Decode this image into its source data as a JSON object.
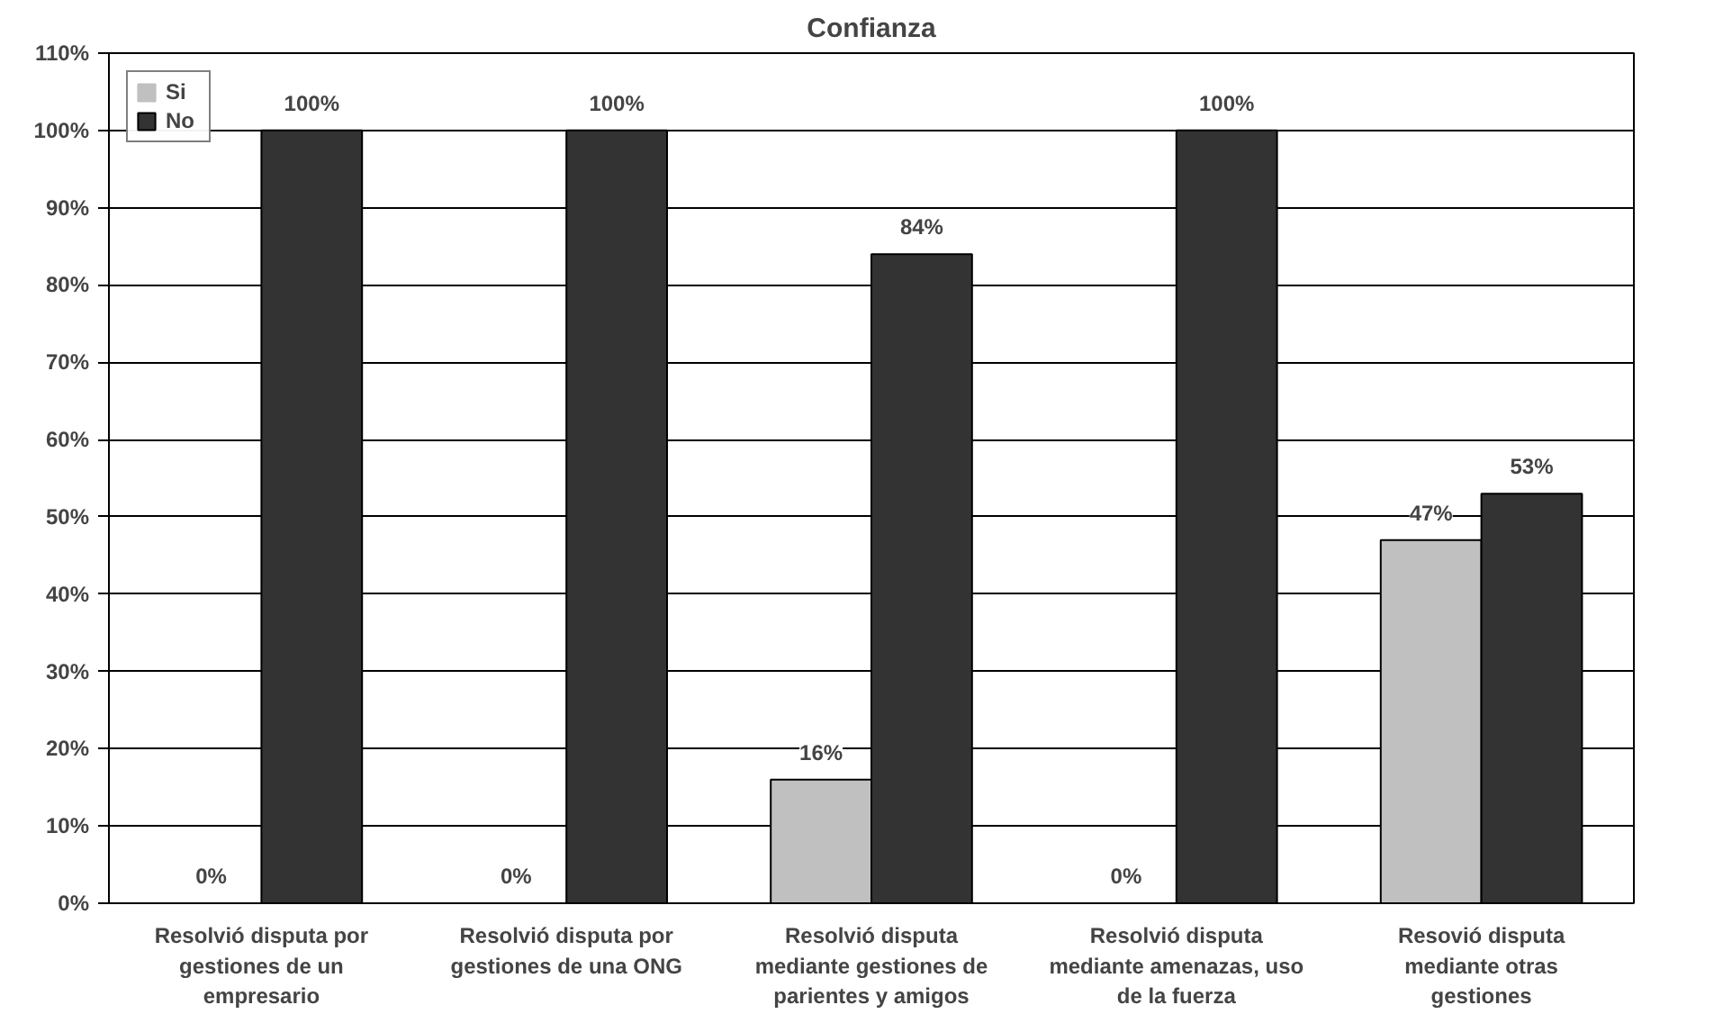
{
  "chart_data": {
    "type": "bar",
    "title": "Confianza",
    "categories": [
      "Resolvió disputa por gestiones de un empresario",
      "Resolvió disputa por gestiones de una ONG",
      "Resolvió disputa mediante gestiones de parientes y amigos",
      "Resolvió disputa mediante amenazas, uso de la fuerza",
      "Resovió disputa mediante otras gestiones"
    ],
    "series": [
      {
        "name": "Si",
        "color": "#c0c0c0",
        "values": [
          0,
          0,
          16,
          0,
          47
        ],
        "value_labels": [
          "0%",
          "0%",
          "16%",
          "0%",
          "47%"
        ]
      },
      {
        "name": "No",
        "color": "#333333",
        "values": [
          100,
          100,
          84,
          100,
          53
        ],
        "value_labels": [
          "100%",
          "100%",
          "84%",
          "100%",
          "53%"
        ]
      }
    ],
    "ylim": [
      0,
      110
    ],
    "yticks": [
      {
        "value": 0,
        "label": "0%"
      },
      {
        "value": 10,
        "label": "10%"
      },
      {
        "value": 20,
        "label": "20%"
      },
      {
        "value": 30,
        "label": "30%"
      },
      {
        "value": 40,
        "label": "40%"
      },
      {
        "value": 50,
        "label": "50%"
      },
      {
        "value": 60,
        "label": "60%"
      },
      {
        "value": 70,
        "label": "70%"
      },
      {
        "value": 80,
        "label": "80%"
      },
      {
        "value": 90,
        "label": "90%"
      },
      {
        "value": 100,
        "label": "100%"
      },
      {
        "value": 110,
        "label": "110%"
      }
    ],
    "grid": "y",
    "legend": "top left"
  }
}
